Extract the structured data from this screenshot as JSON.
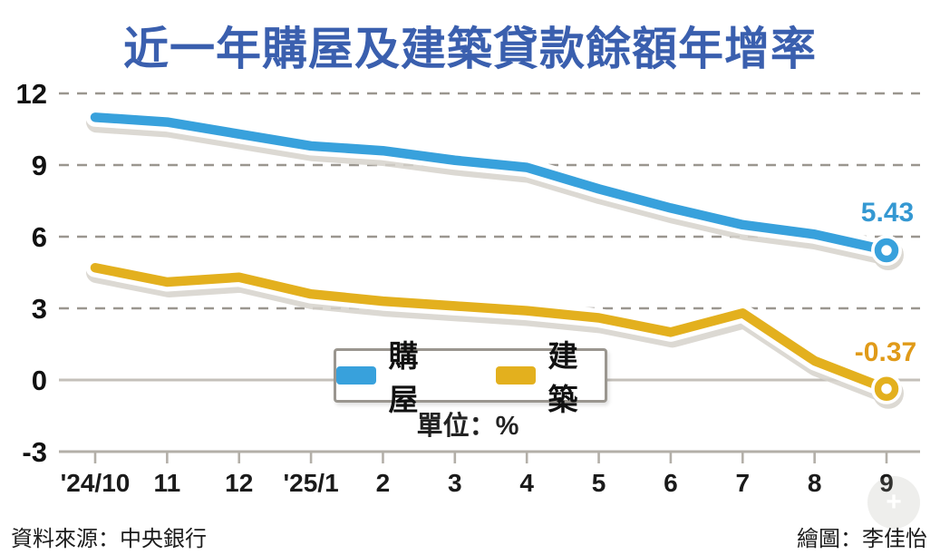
{
  "title": "近一年購屋及建築貸款餘額年增率",
  "unit_label": "單位：%",
  "legend": {
    "items": [
      {
        "label": "購屋",
        "color": "#38a1dc"
      },
      {
        "label": "建築",
        "color": "#e3b01e"
      }
    ]
  },
  "footer": {
    "source": "資料來源：中央銀行",
    "credit": "繪圖：李佳怡"
  },
  "watermark_plus": "+",
  "colors": {
    "title_blue": "#3a5fae",
    "grid_dashed": "#9a968f",
    "zero_line": "#c4c0ba",
    "axis_line": "#b3afa8",
    "tick_text": "#1a1a1a",
    "line_shadow": "#d6d2cb"
  },
  "chart_data": {
    "type": "line",
    "title": "近一年購屋及建築貸款餘額年增率",
    "unit": "%",
    "xlabel": "",
    "ylabel": "",
    "x": [
      "'24/10",
      "11",
      "12",
      "'25/1",
      "2",
      "3",
      "4",
      "5",
      "6",
      "7",
      "8",
      "9"
    ],
    "series": [
      {
        "name": "購屋",
        "color": "#38a1dc",
        "values": [
          11.0,
          10.8,
          10.3,
          9.8,
          9.6,
          9.2,
          8.9,
          8.0,
          7.2,
          6.5,
          6.1,
          5.43
        ],
        "end_label": "5.43",
        "end_label_color": "#3498d2"
      },
      {
        "name": "建築",
        "color": "#e3b01e",
        "values": [
          4.7,
          4.1,
          4.3,
          3.6,
          3.3,
          3.1,
          2.9,
          2.6,
          2.0,
          2.8,
          0.8,
          -0.37
        ],
        "end_label": "-0.37",
        "end_label_color": "#e09a18"
      }
    ],
    "yticks": [
      12,
      9,
      6,
      3,
      0,
      -3
    ],
    "ylim": [
      -3,
      12
    ],
    "grid": "horizontal dashed, solid zero line",
    "legend_position": "inside bottom center"
  }
}
